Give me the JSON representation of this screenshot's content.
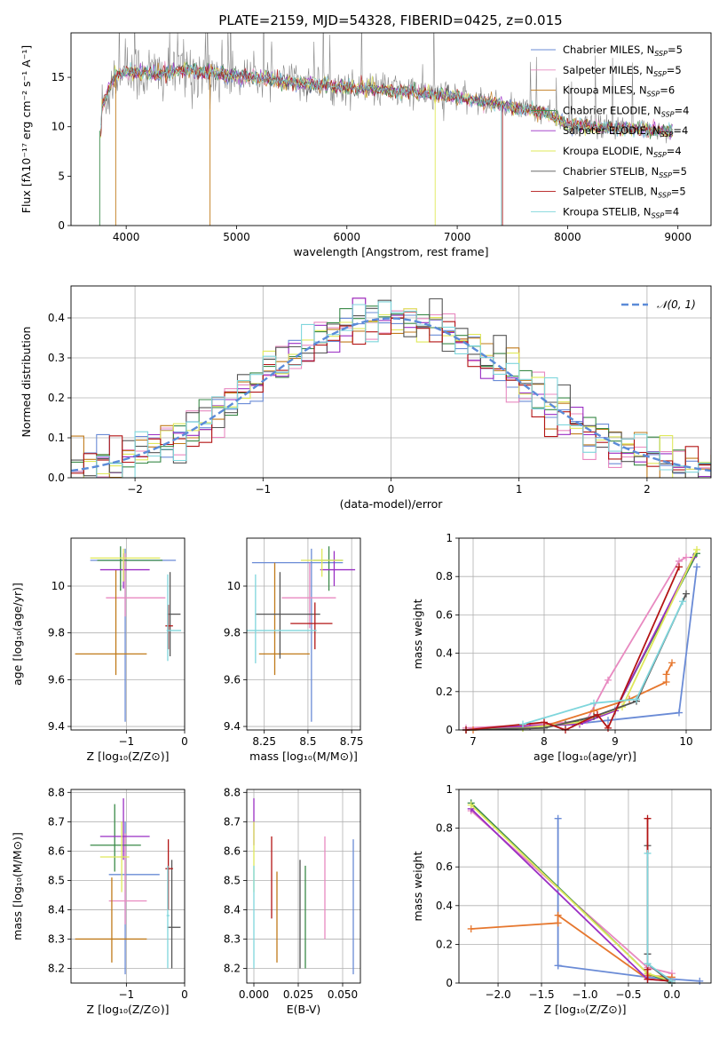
{
  "title": "PLATE=2159, MJD=54328, FIBERID=0425, z=0.015",
  "colors": {
    "series": [
      "#6a8bd6",
      "#e889c0",
      "#c07a1a",
      "#3a8a48",
      "#9a2fc4",
      "#dfe85a",
      "#555555",
      "#b31515",
      "#7fd6dc"
    ],
    "data": "#888888",
    "gauss": "#5b8bd8",
    "extra": "#e6772e"
  },
  "chart_data": [
    {
      "id": "spectrum",
      "type": "line",
      "xlabel": "wavelength [Angstrom, rest frame]",
      "ylabel": "Flux [fλ10⁻¹⁷ erg cm⁻² s⁻¹ A⁻¹]",
      "xlim": [
        3500,
        9300
      ],
      "ylim": [
        0,
        19.5
      ],
      "xticks": [
        4000,
        5000,
        6000,
        7000,
        8000,
        9000
      ],
      "yticks": [
        0,
        5,
        10,
        15
      ],
      "legend_position": "upper-right",
      "continuum": [
        [
          3780,
          12.0
        ],
        [
          3900,
          15.2
        ],
        [
          4000,
          15.6
        ],
        [
          4300,
          15.3
        ],
        [
          4500,
          15.8
        ],
        [
          5000,
          15.2
        ],
        [
          5500,
          14.5
        ],
        [
          6000,
          14.0
        ],
        [
          6500,
          13.6
        ],
        [
          7000,
          13.0
        ],
        [
          7500,
          12.0
        ],
        [
          7800,
          11.4
        ],
        [
          8000,
          10.2
        ],
        [
          8500,
          9.8
        ],
        [
          8900,
          9.6
        ]
      ],
      "series": [
        {
          "name": "Chabrier MILES, N",
          "sub": "SSP",
          "suffix": "=5"
        },
        {
          "name": "Salpeter MILES, N",
          "sub": "SSP",
          "suffix": "=5"
        },
        {
          "name": "Kroupa MILES, N",
          "sub": "SSP",
          "suffix": "=6"
        },
        {
          "name": "Chabrier ELODIE, N",
          "sub": "SSP",
          "suffix": "=4"
        },
        {
          "name": "Salpeter ELODIE, N",
          "sub": "SSP",
          "suffix": "=4"
        },
        {
          "name": "Kroupa ELODIE, N",
          "sub": "SSP",
          "suffix": "=4"
        },
        {
          "name": "Chabrier STELIB, N",
          "sub": "SSP",
          "suffix": "=5"
        },
        {
          "name": "Salpeter STELIB, N",
          "sub": "SSP",
          "suffix": "=5"
        },
        {
          "name": "Kroupa STELIB, N",
          "sub": "SSP",
          "suffix": "=4"
        }
      ]
    },
    {
      "id": "residuals",
      "type": "line",
      "xlabel": "(data-model)/error",
      "ylabel": "Normed distribution",
      "xlim": [
        -2.5,
        2.5
      ],
      "ylim": [
        0,
        0.48
      ],
      "xticks": [
        -2,
        -1,
        0,
        1,
        2
      ],
      "yticks": [
        0.0,
        0.1,
        0.2,
        0.3,
        0.4
      ],
      "grid": true,
      "legend_label": "𝒩(0, 1)",
      "legend_position": "upper-right",
      "bin_width": 0.1
    },
    {
      "id": "age_vs_Z",
      "type": "scatter",
      "xlabel": "Z [log₁₀(Z/Z⊙)]",
      "ylabel": "age  [log₁₀(age/yr)]",
      "xlim": [
        -1.95,
        0.0
      ],
      "ylim": [
        9.385,
        10.205
      ],
      "xticks": [
        -1,
        0
      ],
      "yticks": [
        9.4,
        9.6,
        9.8,
        10.0
      ],
      "grid": true,
      "points": [
        {
          "s": 0,
          "x": -1.02,
          "y": 10.11,
          "xe": [
            -1.62,
            -0.15
          ],
          "ye": [
            9.42,
            10.16
          ]
        },
        {
          "s": 1,
          "x": -1.02,
          "y": 9.95,
          "xe": [
            -1.35,
            -0.33
          ],
          "ye": [
            9.87,
            10.14
          ]
        },
        {
          "s": 2,
          "x": -1.18,
          "y": 9.71,
          "xe": [
            -1.88,
            -0.65
          ],
          "ye": [
            9.62,
            10.07
          ]
        },
        {
          "s": 3,
          "x": -1.1,
          "y": 10.11,
          "xe": [
            -1.5,
            -0.38
          ],
          "ye": [
            9.98,
            10.17
          ]
        },
        {
          "s": 4,
          "x": -1.05,
          "y": 10.07,
          "xe": [
            -1.45,
            -0.6
          ],
          "ye": [
            9.99,
            10.14
          ]
        },
        {
          "s": 5,
          "x": -1.05,
          "y": 10.12,
          "xe": [
            -1.62,
            -0.42
          ],
          "ye": [
            10.02,
            10.16
          ]
        },
        {
          "s": 6,
          "x": -0.25,
          "y": 9.88,
          "xe": [
            -0.3,
            -0.07
          ],
          "ye": [
            9.7,
            10.06
          ]
        },
        {
          "s": 7,
          "x": -0.28,
          "y": 9.83,
          "xe": [
            -0.33,
            -0.2
          ],
          "ye": [
            9.73,
            9.92
          ]
        },
        {
          "s": 8,
          "x": -0.29,
          "y": 9.81,
          "xe": [
            -0.31,
            -0.06
          ],
          "ye": [
            9.68,
            10.05
          ]
        }
      ]
    },
    {
      "id": "age_vs_mass",
      "type": "scatter",
      "xlabel": "mass [log₁₀(M/M⊙)]",
      "ylabel": "",
      "xlim": [
        8.15,
        8.8
      ],
      "ylim": [
        9.385,
        10.205
      ],
      "xticks": [
        8.25,
        8.5,
        8.75
      ],
      "yticks": [
        9.4,
        9.6,
        9.8,
        10.0
      ],
      "grid": true,
      "points": [
        {
          "s": 0,
          "x": 8.52,
          "y": 10.1,
          "xe": [
            8.18,
            8.7
          ],
          "ye": [
            9.42,
            10.16
          ]
        },
        {
          "s": 1,
          "x": 8.51,
          "y": 9.95,
          "xe": [
            8.35,
            8.66
          ],
          "ye": [
            9.82,
            10.1
          ]
        },
        {
          "s": 2,
          "x": 8.31,
          "y": 9.71,
          "xe": [
            8.22,
            8.51
          ],
          "ye": [
            9.62,
            10.1
          ]
        },
        {
          "s": 3,
          "x": 8.62,
          "y": 10.11,
          "xe": [
            8.53,
            8.7
          ],
          "ye": [
            9.98,
            10.17
          ]
        },
        {
          "s": 4,
          "x": 8.65,
          "y": 10.07,
          "xe": [
            8.57,
            8.77
          ],
          "ye": [
            10.0,
            10.15
          ]
        },
        {
          "s": 5,
          "x": 8.58,
          "y": 10.11,
          "xe": [
            8.46,
            8.7
          ],
          "ye": [
            10.04,
            10.16
          ]
        },
        {
          "s": 6,
          "x": 8.34,
          "y": 9.88,
          "xe": [
            8.2,
            8.57
          ],
          "ye": [
            9.69,
            10.06
          ]
        },
        {
          "s": 7,
          "x": 8.54,
          "y": 9.84,
          "xe": [
            8.4,
            8.64
          ],
          "ye": [
            9.73,
            9.93
          ]
        },
        {
          "s": 8,
          "x": 8.2,
          "y": 9.81,
          "xe": [
            8.15,
            8.55
          ],
          "ye": [
            9.67,
            10.05
          ]
        }
      ]
    },
    {
      "id": "weight_vs_age",
      "type": "line",
      "xlabel": "age  [log₁₀(age/yr)]",
      "ylabel": "mass weight",
      "xlim": [
        6.8,
        10.35
      ],
      "ylim": [
        0,
        1.0
      ],
      "xticks": [
        7,
        8,
        9,
        10
      ],
      "yticks": [
        0.0,
        0.2,
        0.4,
        0.6,
        0.8,
        1.0
      ],
      "grid": true,
      "series": [
        {
          "s": 0,
          "x": [
            6.9,
            7.8,
            8.4,
            8.9,
            9.9,
            10.15
          ],
          "y": [
            0.0,
            0.02,
            0.03,
            0.05,
            0.09,
            0.85
          ]
        },
        {
          "s": 1,
          "x": [
            6.9,
            8.0,
            8.6,
            8.9,
            9.9,
            10.0
          ],
          "y": [
            0.01,
            0.03,
            0.05,
            0.26,
            0.88,
            0.9
          ]
        },
        {
          "s": 2,
          "x": [
            7.0,
            8.0,
            8.7,
            9.2,
            9.72,
            9.72,
            9.8
          ],
          "y": [
            0.0,
            0.02,
            0.1,
            0.16,
            0.25,
            0.29,
            0.35
          ]
        },
        {
          "s": 3,
          "x": [
            6.9,
            7.7,
            8.3,
            9.0,
            10.15
          ],
          "y": [
            0.0,
            0.01,
            0.03,
            0.1,
            0.92
          ]
        },
        {
          "s": 4,
          "x": [
            6.9,
            7.8,
            8.5,
            9.0,
            10.1
          ],
          "y": [
            0.0,
            0.02,
            0.03,
            0.1,
            0.9
          ]
        },
        {
          "s": 5,
          "x": [
            6.9,
            7.7,
            8.5,
            9.1,
            10.15
          ],
          "y": [
            0.0,
            0.01,
            0.04,
            0.12,
            0.94
          ]
        },
        {
          "s": 6,
          "x": [
            6.9,
            8.0,
            8.7,
            9.3,
            10.0
          ],
          "y": [
            0.0,
            0.01,
            0.07,
            0.15,
            0.71
          ]
        },
        {
          "s": 7,
          "x": [
            6.9,
            8.0,
            8.3,
            8.75,
            8.9,
            9.9
          ],
          "y": [
            0.0,
            0.04,
            0.0,
            0.08,
            0.01,
            0.85
          ]
        },
        {
          "s": 8,
          "x": [
            7.7,
            8.7,
            9.3,
            9.95
          ],
          "y": [
            0.03,
            0.14,
            0.16,
            0.67
          ]
        }
      ]
    },
    {
      "id": "mass_vs_Z",
      "type": "scatter",
      "xlabel": "Z [log₁₀(Z/Z⊙)]",
      "ylabel": "mass [log₁₀(M/M⊙)]",
      "xlim": [
        -1.95,
        0.0
      ],
      "ylim": [
        8.15,
        8.81
      ],
      "xticks": [
        -1,
        0
      ],
      "yticks": [
        8.2,
        8.3,
        8.4,
        8.5,
        8.6,
        8.7,
        8.8
      ],
      "grid": true,
      "points": [
        {
          "s": 0,
          "x": -1.02,
          "y": 8.52,
          "xe": [
            -1.3,
            -0.43
          ],
          "ye": [
            8.18,
            8.7
          ]
        },
        {
          "s": 1,
          "x": -1.02,
          "y": 8.43,
          "xe": [
            -1.3,
            -0.65
          ],
          "ye": [
            8.35,
            8.66
          ]
        },
        {
          "s": 2,
          "x": -1.25,
          "y": 8.3,
          "xe": [
            -1.88,
            -0.65
          ],
          "ye": [
            8.22,
            8.51
          ]
        },
        {
          "s": 3,
          "x": -1.2,
          "y": 8.62,
          "xe": [
            -1.62,
            -0.75
          ],
          "ye": [
            8.53,
            8.76
          ]
        },
        {
          "s": 4,
          "x": -1.05,
          "y": 8.65,
          "xe": [
            -1.45,
            -0.6
          ],
          "ye": [
            8.57,
            8.78
          ]
        },
        {
          "s": 5,
          "x": -1.08,
          "y": 8.58,
          "xe": [
            -1.45,
            -0.95
          ],
          "ye": [
            8.46,
            8.7
          ]
        },
        {
          "s": 6,
          "x": -0.22,
          "y": 8.34,
          "xe": [
            -0.3,
            -0.07
          ],
          "ye": [
            8.2,
            8.57
          ]
        },
        {
          "s": 7,
          "x": -0.28,
          "y": 8.54,
          "xe": [
            -0.33,
            -0.2
          ],
          "ye": [
            8.4,
            8.64
          ]
        },
        {
          "s": 8,
          "x": -0.29,
          "y": 8.38,
          "xe": [
            -0.31,
            -0.26
          ],
          "ye": [
            8.2,
            8.55
          ]
        }
      ]
    },
    {
      "id": "mass_vs_ebv",
      "type": "scatter",
      "xlabel": "E(B-V)",
      "ylabel": "",
      "xlim": [
        -0.004,
        0.06
      ],
      "ylim": [
        8.15,
        8.81
      ],
      "xticks": [
        0.0,
        0.025,
        0.05
      ],
      "xtick_labels": [
        "0.000",
        "0.025",
        "0.050"
      ],
      "yticks": [
        8.2,
        8.3,
        8.4,
        8.5,
        8.6,
        8.7,
        8.8
      ],
      "grid": true,
      "points": [
        {
          "s": 0,
          "x": 0.056,
          "ye": [
            8.18,
            8.64
          ]
        },
        {
          "s": 1,
          "x": 0.04,
          "ye": [
            8.3,
            8.65
          ]
        },
        {
          "s": 2,
          "x": 0.013,
          "ye": [
            8.22,
            8.53
          ]
        },
        {
          "s": 3,
          "x": 0.029,
          "ye": [
            8.2,
            8.55
          ]
        },
        {
          "s": 4,
          "x": 0.0,
          "ye": [
            8.62,
            8.78
          ]
        },
        {
          "s": 5,
          "x": 0.0,
          "ye": [
            8.46,
            8.7
          ]
        },
        {
          "s": 6,
          "x": 0.026,
          "ye": [
            8.2,
            8.57
          ]
        },
        {
          "s": 7,
          "x": 0.01,
          "ye": [
            8.37,
            8.65
          ]
        },
        {
          "s": 8,
          "x": 0.0,
          "ye": [
            8.2,
            8.55
          ]
        }
      ]
    },
    {
      "id": "weight_vs_Z",
      "type": "line",
      "xlabel": "Z [log₁₀(Z/Z⊙)]",
      "ylabel": "mass weight",
      "xlim": [
        -2.45,
        0.45
      ],
      "ylim": [
        0,
        1.0
      ],
      "xticks": [
        -2.0,
        -1.5,
        -1.0,
        -0.5,
        0.0
      ],
      "xtick_labels": [
        "−2.0",
        "−1.5",
        "−1.0",
        "−0.5",
        "0.0"
      ],
      "yticks": [
        0.0,
        0.2,
        0.4,
        0.6,
        0.8,
        1.0
      ],
      "grid": true,
      "series": [
        {
          "s": 0,
          "x": [
            -1.31,
            -1.31,
            -1.31,
            -0.28,
            -0.28,
            0.32
          ],
          "y": [
            0.85,
            0.09,
            0.09,
            0.03,
            0.03,
            0.01
          ]
        },
        {
          "s": 1,
          "x": [
            -2.31,
            -0.28,
            0.0,
            0.0
          ],
          "y": [
            0.89,
            0.08,
            0.05,
            0.0
          ]
        },
        {
          "s": 2,
          "x": [
            -2.31,
            -1.31,
            -1.31,
            -0.28,
            -0.28,
            0.0
          ],
          "y": [
            0.28,
            0.31,
            0.35,
            0.02,
            0.04,
            0.03
          ]
        },
        {
          "s": 3,
          "x": [
            -2.31,
            -0.28,
            0.0
          ],
          "y": [
            0.93,
            0.05,
            0.0
          ]
        },
        {
          "s": 4,
          "x": [
            -2.31,
            -0.28,
            0.0
          ],
          "y": [
            0.9,
            0.02,
            0.01
          ]
        },
        {
          "s": 5,
          "x": [
            -2.31,
            -0.28,
            0.0
          ],
          "y": [
            0.92,
            0.05,
            0.01
          ]
        },
        {
          "s": 6,
          "x": [
            -0.28,
            -0.28,
            -0.28,
            0.0
          ],
          "y": [
            0.71,
            0.15,
            0.1,
            0.0
          ]
        },
        {
          "s": 7,
          "x": [
            -0.28,
            -0.28,
            -0.28,
            0.0
          ],
          "y": [
            0.85,
            0.07,
            0.02,
            0.01
          ]
        },
        {
          "s": 8,
          "x": [
            -0.28,
            -0.28,
            0.0
          ],
          "y": [
            0.67,
            0.1,
            0.01
          ]
        }
      ]
    }
  ]
}
